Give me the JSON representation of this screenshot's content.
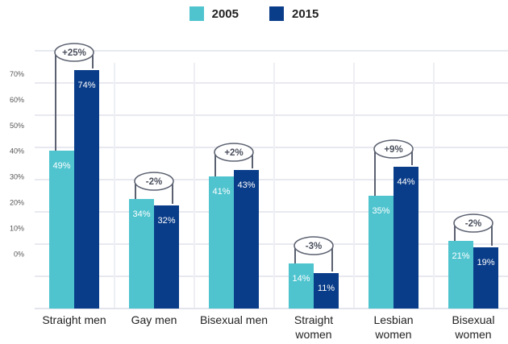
{
  "chart_data": {
    "type": "bar",
    "categories": [
      "Straight men",
      "Gay men",
      "Bisexual men",
      "Straight women",
      "Lesbian women",
      "Bisexual women"
    ],
    "category_lines": [
      [
        "Straight men"
      ],
      [
        "Gay men"
      ],
      [
        "Bisexual men"
      ],
      [
        "Straight",
        "women"
      ],
      [
        "Lesbian",
        "women"
      ],
      [
        "Bisexual",
        "women"
      ]
    ],
    "series": [
      {
        "name": "2005",
        "color": "#4fc4cf",
        "values": [
          49,
          34,
          41,
          14,
          35,
          21
        ],
        "labels": [
          "49%",
          "34%",
          "41%",
          "14%",
          "35%",
          "21%"
        ]
      },
      {
        "name": "2015",
        "color": "#0a3d89",
        "values": [
          74,
          32,
          43,
          11,
          44,
          19
        ],
        "labels": [
          "74%",
          "32%",
          "43%",
          "11%",
          "44%",
          "19%"
        ]
      }
    ],
    "changes": [
      "+25%",
      "-2%",
      "+2%",
      "-3%",
      "+9%",
      "-2%"
    ],
    "y_tick_labels": [
      "70%",
      "60%",
      "50%",
      "40%",
      "30%",
      "20%",
      "10%",
      "0%"
    ],
    "ylim": [
      0,
      80
    ],
    "grid": true,
    "legend_position": "top-center",
    "title": "",
    "xlabel": "",
    "ylabel": ""
  }
}
